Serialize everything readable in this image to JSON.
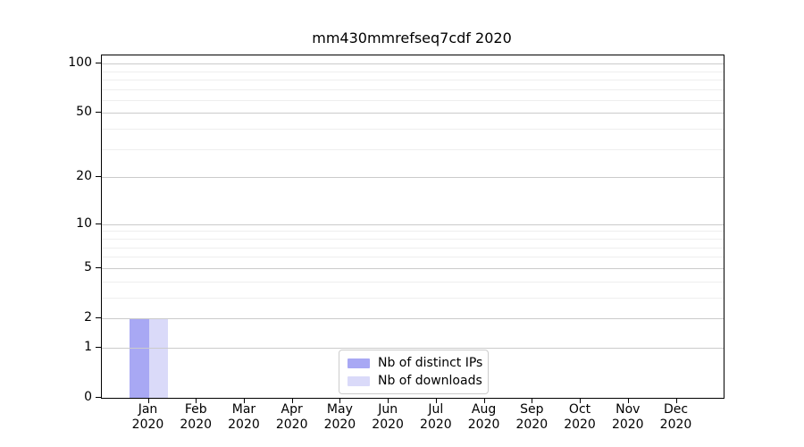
{
  "chart_data": {
    "type": "bar",
    "title": "mm430mmrefseq7cdf 2020",
    "categories": [
      "Jan",
      "Feb",
      "Mar",
      "Apr",
      "May",
      "Jun",
      "Jul",
      "Aug",
      "Sep",
      "Oct",
      "Nov",
      "Dec"
    ],
    "x_tick_second_line": "2020",
    "series": [
      {
        "name": "Nb of distinct IPs",
        "color": "#a8a8f4",
        "values": [
          2,
          0,
          0,
          0,
          0,
          0,
          0,
          0,
          0,
          0,
          0,
          0
        ]
      },
      {
        "name": "Nb of downloads",
        "color": "#dadaf9",
        "values": [
          2,
          0,
          0,
          0,
          0,
          0,
          0,
          0,
          0,
          0,
          0,
          0
        ]
      }
    ],
    "yscale": "log1p",
    "ylim": [
      0,
      112
    ],
    "yticks": [
      0,
      1,
      2,
      5,
      10,
      20,
      50,
      100
    ],
    "minor_yticks": [
      3,
      4,
      6,
      7,
      8,
      9,
      30,
      40,
      60,
      70,
      80,
      90
    ],
    "grid": true,
    "legend_position": "lower center"
  }
}
